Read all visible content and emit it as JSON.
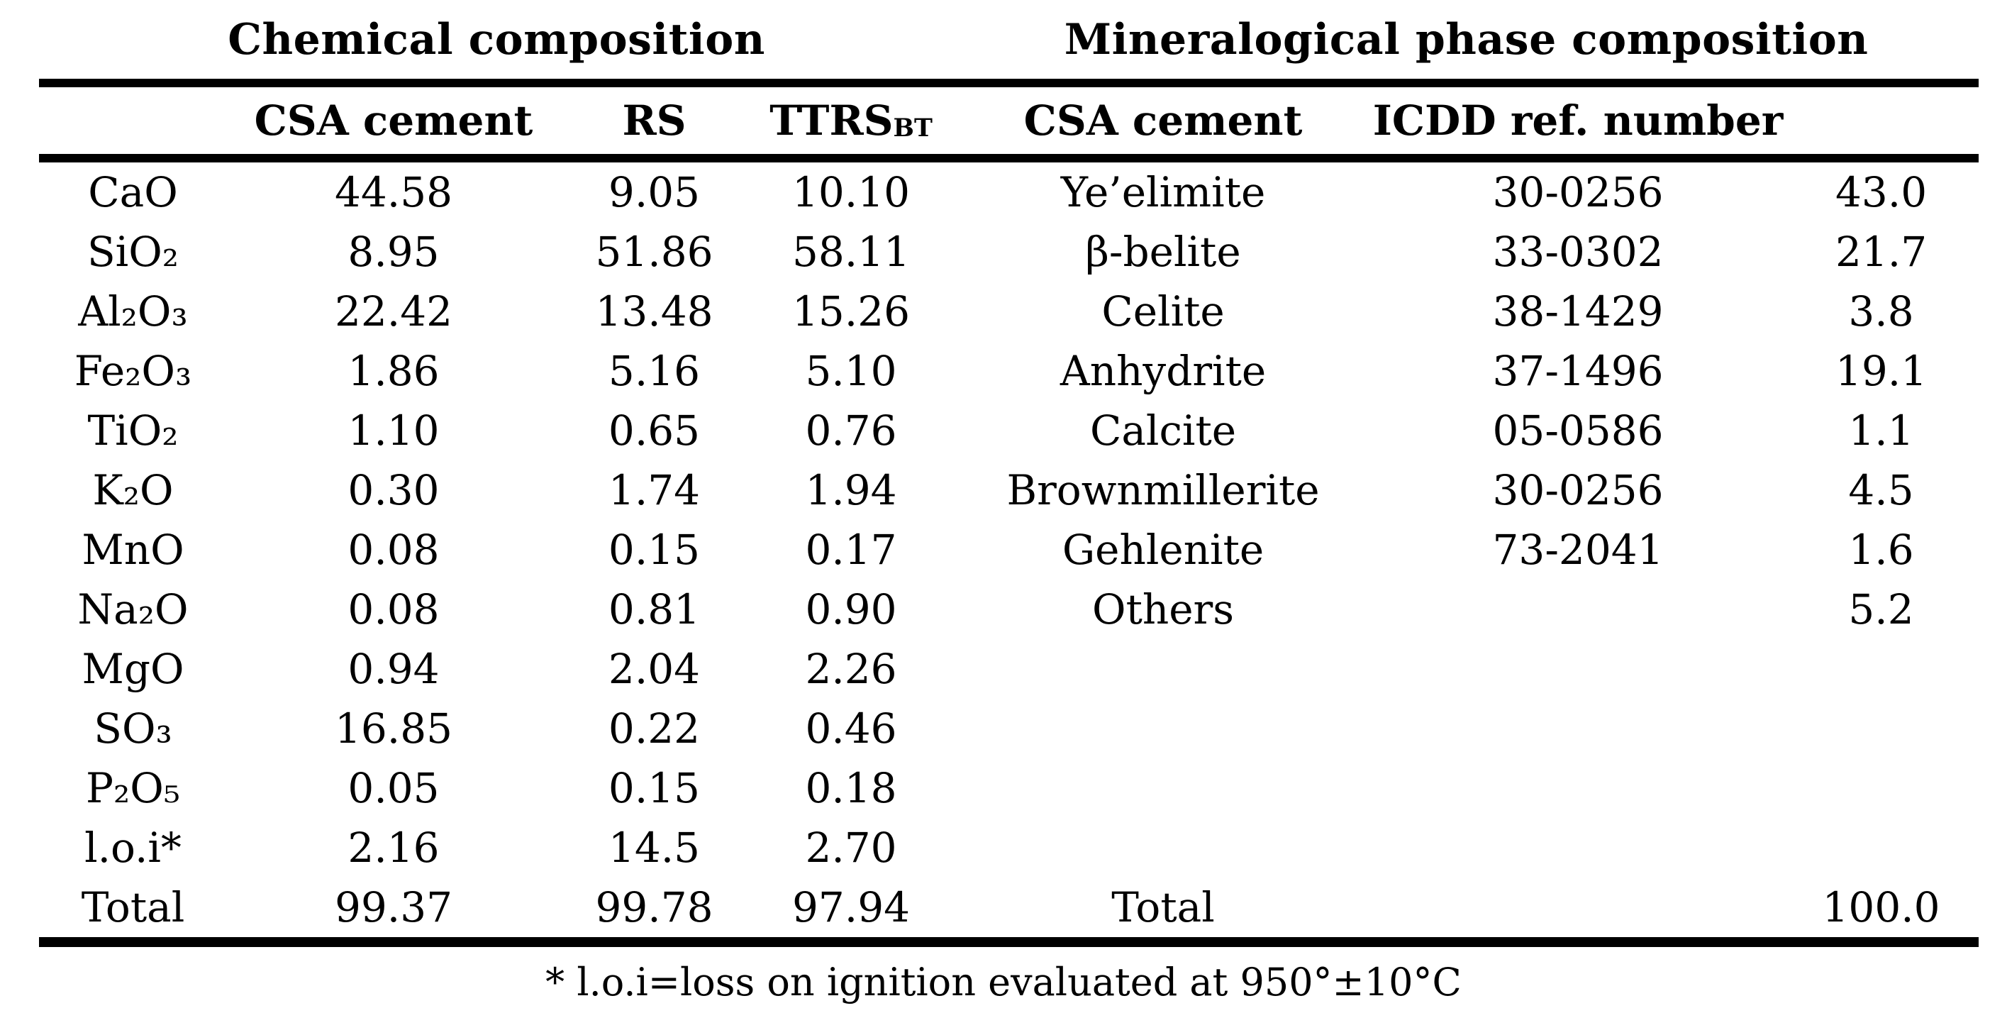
{
  "sections": {
    "chemical_title": "Chemical composition",
    "mineralogical_title": "Mineralogical phase composition"
  },
  "headers": {
    "chem_sample": "CSA cement",
    "chem_rs": "RS",
    "chem_ttrs_base": "TTRS",
    "chem_ttrs_sub": "BT",
    "min_sample": "CSA cement",
    "min_icdd": "ICDD ref. number"
  },
  "rows": [
    {
      "ox": "CaO",
      "csa": "44.58",
      "rs": "9.05",
      "ttrs": "10.10",
      "phase": "Ye’elimite",
      "icdd": "30-0256",
      "wt": "43.0"
    },
    {
      "ox": "SiO₂",
      "csa": "8.95",
      "rs": "51.86",
      "ttrs": "58.11",
      "phase": "β-belite",
      "icdd": "33-0302",
      "wt": "21.7"
    },
    {
      "ox": "Al₂O₃",
      "csa": "22.42",
      "rs": "13.48",
      "ttrs": "15.26",
      "phase": "Celite",
      "icdd": "38-1429",
      "wt": "3.8"
    },
    {
      "ox": "Fe₂O₃",
      "csa": "1.86",
      "rs": "5.16",
      "ttrs": "5.10",
      "phase": "Anhydrite",
      "icdd": "37-1496",
      "wt": "19.1"
    },
    {
      "ox": "TiO₂",
      "csa": "1.10",
      "rs": "0.65",
      "ttrs": "0.76",
      "phase": "Calcite",
      "icdd": "05-0586",
      "wt": "1.1"
    },
    {
      "ox": "K₂O",
      "csa": "0.30",
      "rs": "1.74",
      "ttrs": "1.94",
      "phase": "Brownmillerite",
      "icdd": "30-0256",
      "wt": "4.5"
    },
    {
      "ox": "MnO",
      "csa": "0.08",
      "rs": "0.15",
      "ttrs": "0.17",
      "phase": "Gehlenite",
      "icdd": "73-2041",
      "wt": "1.6"
    },
    {
      "ox": "Na₂O",
      "csa": "0.08",
      "rs": "0.81",
      "ttrs": "0.90",
      "phase": "Others",
      "icdd": "",
      "wt": "5.2"
    },
    {
      "ox": "MgO",
      "csa": "0.94",
      "rs": "2.04",
      "ttrs": "2.26",
      "phase": "",
      "icdd": "",
      "wt": ""
    },
    {
      "ox": "SO₃",
      "csa": "16.85",
      "rs": "0.22",
      "ttrs": "0.46",
      "phase": "",
      "icdd": "",
      "wt": ""
    },
    {
      "ox": "P₂O₅",
      "csa": "0.05",
      "rs": "0.15",
      "ttrs": "0.18",
      "phase": "",
      "icdd": "",
      "wt": ""
    },
    {
      "ox": "l.o.i*",
      "csa": "2.16",
      "rs": "14.5",
      "ttrs": "2.70",
      "phase": "",
      "icdd": "",
      "wt": ""
    },
    {
      "ox": "Total",
      "csa": "99.37",
      "rs": "99.78",
      "ttrs": "97.94",
      "phase": "Total",
      "icdd": "",
      "wt": "100.0"
    }
  ],
  "footnote": "* l.o.i=loss on ignition evaluated at 950°±10°C"
}
